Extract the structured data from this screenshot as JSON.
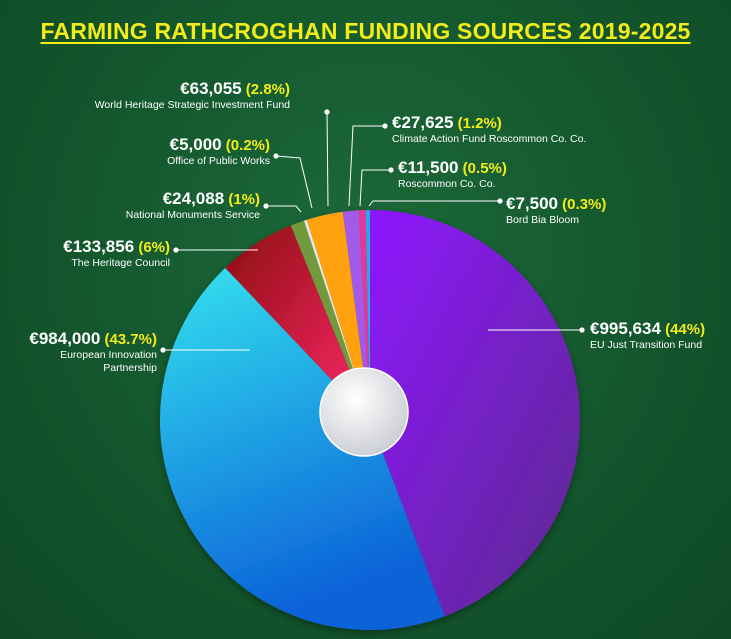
{
  "title": "FARMING RATHCROGHAN FUNDING SOURCES 2019-2025",
  "chart_data": {
    "type": "pie",
    "title": "FARMING RATHCROGHAN FUNDING SOURCES 2019-2025",
    "slices": [
      {
        "name": "EU Just Transition Fund",
        "amount": "€995,634",
        "pct": "(44%)",
        "value": 995634,
        "color": "#8a14e6"
      },
      {
        "name": "European Innovation Partnership",
        "amount": "€984,000",
        "pct": "(43.7%)",
        "value": 984000,
        "color": "#1aa0ee"
      },
      {
        "name": "The Heritage Council",
        "amount": "€133,856",
        "pct": "(6%)",
        "value": 133856,
        "color": "#d81a3c"
      },
      {
        "name": "National Monuments Service",
        "amount": "€24,088",
        "pct": "(1%)",
        "value": 24088,
        "color": "#6f9a3a"
      },
      {
        "name": "Office of Public Works",
        "amount": "€5,000",
        "pct": "(0.2%)",
        "value": 5000,
        "color": "#e8e8e8"
      },
      {
        "name": "World Heritage Strategic Investment Fund",
        "amount": "€63,055",
        "pct": "(2.8%)",
        "value": 63055,
        "color": "#ffa20f"
      },
      {
        "name": "Climate Action Fund Roscommon Co. Co.",
        "amount": "€27,625",
        "pct": "(1.2%)",
        "value": 27625,
        "color": "#a35ae6"
      },
      {
        "name": "Roscommon Co. Co.",
        "amount": "€11,500",
        "pct": "(0.5%)",
        "value": 11500,
        "color": "#e8359a"
      },
      {
        "name": "Bord Bia Bloom",
        "amount": "€7,500",
        "pct": "(0.3%)",
        "value": 7500,
        "color": "#2aa8e0"
      }
    ]
  }
}
